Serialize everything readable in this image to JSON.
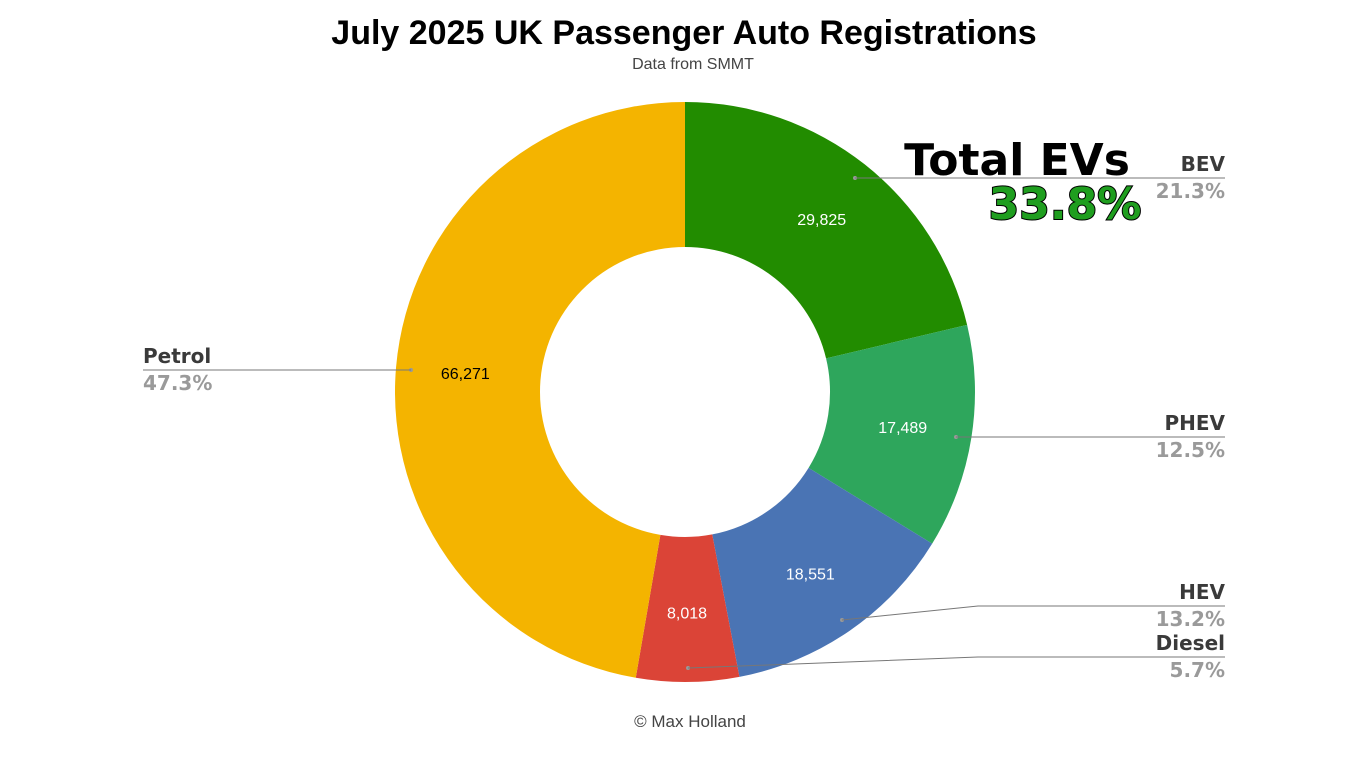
{
  "header": {
    "title": "July 2025 UK Passenger Auto Registrations",
    "subtitle": "Data from SMMT"
  },
  "footer": {
    "credit": "© Max Holland"
  },
  "callout": {
    "title": "Total EVs",
    "value": "33.8%",
    "value_color": "#1f9e1f"
  },
  "chart_data": {
    "type": "pie",
    "donut": true,
    "start": "top, clockwise",
    "slices": [
      {
        "name": "BEV",
        "value": 29825,
        "value_label": "29,825",
        "percent_label": "21.3%",
        "color": "#228c00",
        "value_text_color": "#ffffff"
      },
      {
        "name": "PHEV",
        "value": 17489,
        "value_label": "17,489",
        "percent_label": "12.5%",
        "color": "#2ea65c",
        "value_text_color": "#ffffff"
      },
      {
        "name": "HEV",
        "value": 18551,
        "value_label": "18,551",
        "percent_label": "13.2%",
        "color": "#4a74b4",
        "value_text_color": "#ffffff"
      },
      {
        "name": "Diesel",
        "value": 8018,
        "value_label": "8,018",
        "percent_label": "5.7%",
        "color": "#db4437",
        "value_text_color": "#ffffff"
      },
      {
        "name": "Petrol",
        "value": 66271,
        "value_label": "66,271",
        "percent_label": "47.3%",
        "color": "#f4b400",
        "value_text_color": "#000000"
      }
    ]
  }
}
